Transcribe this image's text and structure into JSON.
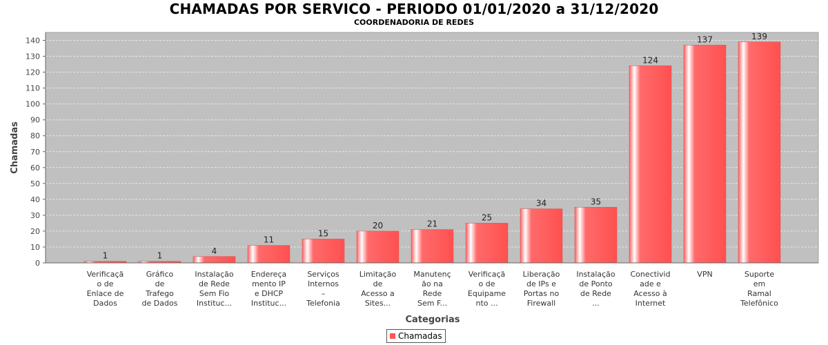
{
  "chart_data": {
    "type": "bar",
    "title": "CHAMADAS POR SERVICO - PERIODO 01/01/2020 a 31/12/2020",
    "subtitle": "COORDENADORIA DE REDES",
    "xlabel": "Categorias",
    "ylabel": "Chamadas",
    "ylim": [
      0,
      145
    ],
    "yticks": [
      0,
      10,
      20,
      30,
      40,
      50,
      60,
      70,
      80,
      90,
      100,
      110,
      120,
      130,
      140
    ],
    "grid": true,
    "legend_position": "bottom",
    "colors": {
      "bar": "#ff5555",
      "plot_bg": "#c0c0c0",
      "grid": "#e8e8e8"
    },
    "categories": [
      [
        "Verificaçã",
        "o de",
        "Enlace de",
        "Dados"
      ],
      [
        "Gráfico",
        "de",
        "Trafego",
        "de Dados"
      ],
      [
        "Instalação",
        "de Rede",
        "Sem Fio",
        "Instituc..."
      ],
      [
        "Endereça",
        "mento IP",
        "e DHCP",
        "Instituc..."
      ],
      [
        "Serviços",
        "Internos",
        "–",
        "Telefonia"
      ],
      [
        "Limitação",
        "de",
        "Acesso a",
        "Sites..."
      ],
      [
        "Manutenç",
        "ão na",
        "Rede",
        "Sem F..."
      ],
      [
        "Verificaçã",
        "o de",
        "Equipame",
        "nto ..."
      ],
      [
        "Liberação",
        "de IPs e",
        "Portas no",
        "Firewall"
      ],
      [
        "Instalação",
        "de Ponto",
        "de Rede",
        "..."
      ],
      [
        "Conectivid",
        "ade e",
        "Acesso à",
        "Internet"
      ],
      [
        "VPN"
      ],
      [
        "Suporte",
        "em",
        "Ramal",
        "Telefônico"
      ]
    ],
    "series": [
      {
        "name": "Chamadas",
        "values": [
          1,
          1,
          4,
          11,
          15,
          20,
          21,
          25,
          34,
          35,
          124,
          137,
          139
        ]
      }
    ]
  }
}
